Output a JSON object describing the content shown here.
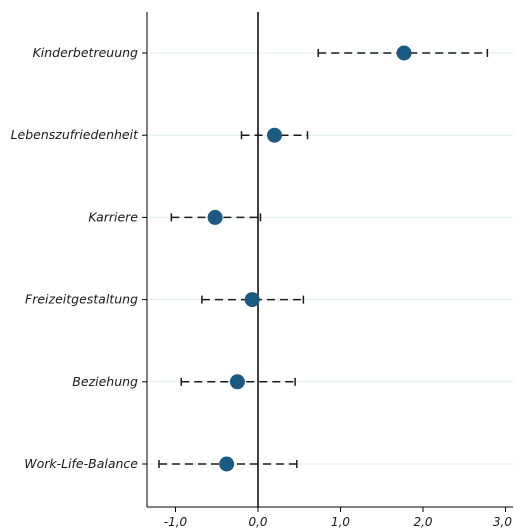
{
  "chart_data": {
    "type": "scatter",
    "subtype": "coefficient-plot",
    "orientation": "horizontal",
    "title": "",
    "xlabel": "",
    "ylabel": "",
    "categories": [
      "Kinderbetreuung",
      "Lebenszufriedenheit",
      "Karriere",
      "Freizeitgestaltung",
      "Beziehung",
      "Work-Life-Balance"
    ],
    "estimates": [
      1.77,
      0.2,
      -0.52,
      -0.07,
      -0.25,
      -0.38
    ],
    "ci_lower": [
      0.73,
      -0.2,
      -1.05,
      -0.68,
      -0.93,
      -1.2
    ],
    "ci_upper": [
      2.78,
      0.6,
      0.03,
      0.55,
      0.45,
      0.47
    ],
    "xlim": [
      -1.35,
      3.0
    ],
    "xticks": [
      -1.0,
      0.0,
      1.0,
      2.0,
      3.0
    ],
    "xtick_labels": [
      "-1,0",
      "0,0",
      "1,0",
      "2,0",
      "3,0"
    ],
    "reference_line_x": 0,
    "grid": "horizontal",
    "legend": "none",
    "colors": {
      "marker": "#1b5a82",
      "error_bar": "#1a1a1a",
      "gridline": "#dceeee",
      "axis": "#000000"
    }
  }
}
